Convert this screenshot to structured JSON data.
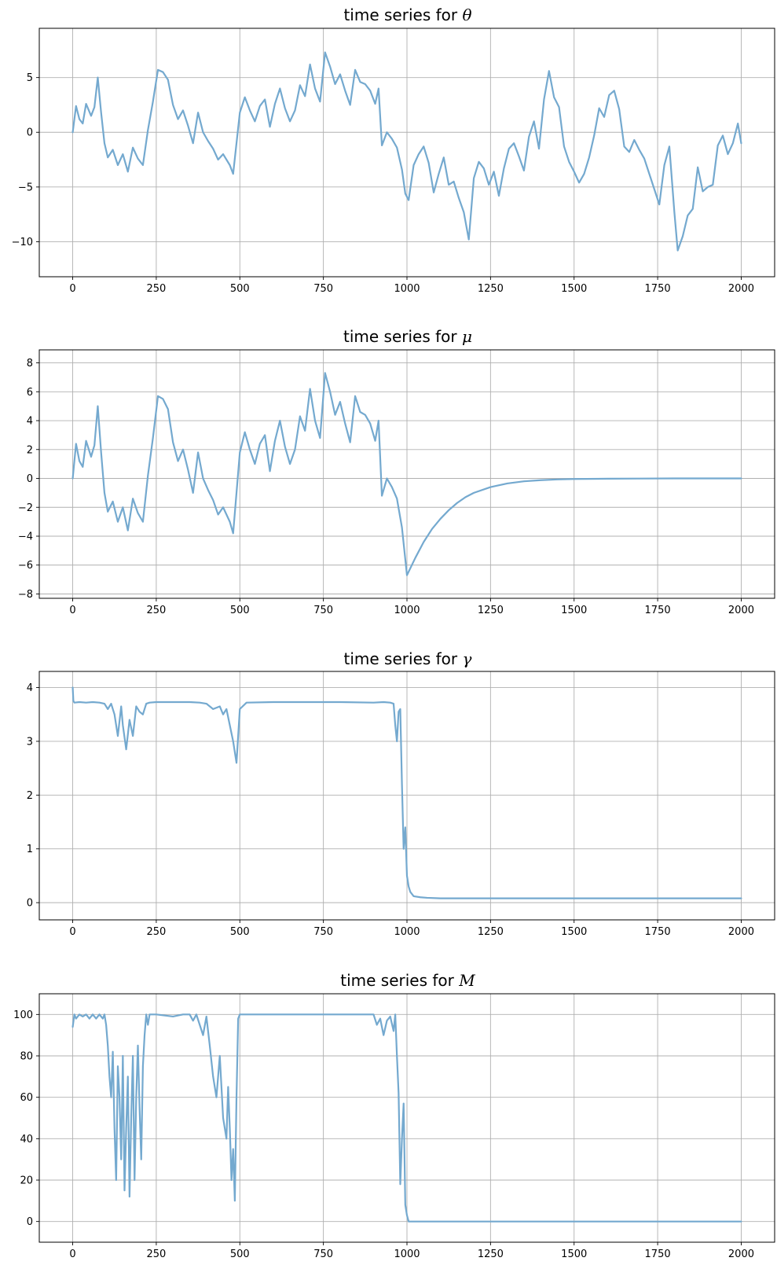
{
  "colors": {
    "series": "#74a9cf",
    "grid": "#b0b0b0",
    "axis": "#000000"
  },
  "chart_data": [
    {
      "type": "line",
      "title_prefix": "time series for ",
      "title_symbol": "θ",
      "grid": true,
      "xlim": [
        -100,
        2100
      ],
      "ylim": [
        -13.2,
        9.5
      ],
      "xticks": [
        0,
        250,
        500,
        750,
        1000,
        1250,
        1500,
        1750,
        2000
      ],
      "yticks": [
        5,
        0,
        -5,
        -10
      ],
      "ytick_labels": [
        "5",
        "0",
        "−5",
        "−10"
      ],
      "series": [
        {
          "x": [
            0,
            10,
            20,
            30,
            40,
            55,
            65,
            75,
            85,
            95,
            105,
            120,
            135,
            150,
            165,
            180,
            195,
            210,
            225,
            240,
            255,
            270,
            285,
            300,
            315,
            330,
            345,
            360,
            375,
            390,
            405,
            420,
            435,
            450,
            470,
            480,
            490,
            500,
            515,
            530,
            545,
            560,
            575,
            590,
            605,
            620,
            635,
            650,
            665,
            680,
            695,
            710,
            725,
            740,
            755,
            770,
            785,
            800,
            815,
            830,
            845,
            860,
            875,
            890,
            905,
            915,
            925,
            940,
            955,
            970,
            985,
            995,
            1005,
            1020,
            1035,
            1050,
            1065,
            1080,
            1095,
            1110,
            1125,
            1140,
            1155,
            1170,
            1185,
            1200,
            1215,
            1230,
            1245,
            1260,
            1275,
            1290,
            1305,
            1320,
            1335,
            1350,
            1365,
            1380,
            1395,
            1410,
            1425,
            1440,
            1455,
            1470,
            1485,
            1500,
            1515,
            1530,
            1545,
            1560,
            1575,
            1590,
            1605,
            1620,
            1635,
            1650,
            1665,
            1680,
            1695,
            1710,
            1725,
            1740,
            1755,
            1770,
            1785,
            1800,
            1810,
            1825,
            1840,
            1855,
            1870,
            1885,
            1900,
            1915,
            1930,
            1945,
            1960,
            1975,
            1990,
            2000
          ],
          "y": [
            0,
            2.4,
            1.2,
            0.8,
            2.6,
            1.5,
            2.3,
            5.0,
            1.8,
            -1.0,
            -2.3,
            -1.6,
            -3.0,
            -2.0,
            -3.6,
            -1.4,
            -2.4,
            -3.0,
            0.2,
            2.8,
            5.7,
            5.5,
            4.8,
            2.5,
            1.2,
            2.0,
            0.6,
            -1.0,
            1.8,
            0.0,
            -0.8,
            -1.5,
            -2.5,
            -2.0,
            -3.0,
            -3.8,
            -1.0,
            1.8,
            3.2,
            2.0,
            1.0,
            2.4,
            3.0,
            0.5,
            2.6,
            4.0,
            2.2,
            1.0,
            2.0,
            4.3,
            3.3,
            6.2,
            4.0,
            2.8,
            7.3,
            6.0,
            4.4,
            5.3,
            3.8,
            2.5,
            5.7,
            4.6,
            4.4,
            3.8,
            2.6,
            4.0,
            -1.2,
            0.0,
            -0.6,
            -1.4,
            -3.4,
            -5.6,
            -6.2,
            -3.0,
            -2.0,
            -1.3,
            -2.8,
            -5.5,
            -3.8,
            -2.3,
            -4.8,
            -4.5,
            -6.0,
            -7.3,
            -9.8,
            -4.2,
            -2.7,
            -3.3,
            -4.8,
            -3.6,
            -5.8,
            -3.3,
            -1.5,
            -1.0,
            -2.2,
            -3.5,
            -0.4,
            1.0,
            -1.5,
            3.0,
            5.6,
            3.2,
            2.3,
            -1.3,
            -2.7,
            -3.6,
            -4.6,
            -3.8,
            -2.3,
            -0.3,
            2.2,
            1.4,
            3.4,
            3.8,
            2.1,
            -1.3,
            -1.8,
            -0.7,
            -1.6,
            -2.4,
            -3.8,
            -5.2,
            -6.6,
            -3.0,
            -1.3,
            -7.3,
            -10.8,
            -9.5,
            -7.6,
            -7.0,
            -3.2,
            -5.4,
            -5.0,
            -4.8,
            -1.2,
            -0.3,
            -2.0,
            -1.0,
            0.8,
            -1.0
          ]
        }
      ]
    },
    {
      "type": "line",
      "title_prefix": "time series for ",
      "title_symbol": "μ",
      "grid": true,
      "xlim": [
        -100,
        2100
      ],
      "ylim": [
        -8.3,
        8.9
      ],
      "xticks": [
        0,
        250,
        500,
        750,
        1000,
        1250,
        1500,
        1750,
        2000
      ],
      "yticks": [
        8,
        6,
        4,
        2,
        0,
        -2,
        -4,
        -6,
        -8
      ],
      "ytick_labels": [
        "8",
        "6",
        "4",
        "2",
        "0",
        "−2",
        "−4",
        "−6",
        "−8"
      ],
      "series": [
        {
          "x": [
            0,
            10,
            20,
            30,
            40,
            55,
            65,
            75,
            85,
            95,
            105,
            120,
            135,
            150,
            165,
            180,
            195,
            210,
            225,
            240,
            255,
            270,
            285,
            300,
            315,
            330,
            345,
            360,
            375,
            390,
            405,
            420,
            435,
            450,
            470,
            480,
            490,
            500,
            515,
            530,
            545,
            560,
            575,
            590,
            605,
            620,
            635,
            650,
            665,
            680,
            695,
            710,
            725,
            740,
            755,
            770,
            785,
            800,
            815,
            830,
            845,
            860,
            875,
            890,
            905,
            915,
            925,
            940,
            955,
            970,
            985,
            995,
            1000,
            1025,
            1050,
            1075,
            1100,
            1125,
            1150,
            1175,
            1200,
            1250,
            1300,
            1350,
            1400,
            1450,
            1500,
            1600,
            1700,
            1800,
            1900,
            2000
          ],
          "y": [
            0,
            2.4,
            1.2,
            0.8,
            2.6,
            1.5,
            2.3,
            5.0,
            1.8,
            -1.0,
            -2.3,
            -1.6,
            -3.0,
            -2.0,
            -3.6,
            -1.4,
            -2.4,
            -3.0,
            0.2,
            2.8,
            5.7,
            5.5,
            4.8,
            2.5,
            1.2,
            2.0,
            0.6,
            -1.0,
            1.8,
            0.0,
            -0.8,
            -1.5,
            -2.5,
            -2.0,
            -3.0,
            -3.8,
            -1.0,
            1.8,
            3.2,
            2.0,
            1.0,
            2.4,
            3.0,
            0.5,
            2.6,
            4.0,
            2.2,
            1.0,
            2.0,
            4.3,
            3.3,
            6.2,
            4.0,
            2.8,
            7.3,
            6.0,
            4.4,
            5.3,
            3.8,
            2.5,
            5.7,
            4.6,
            4.4,
            3.8,
            2.6,
            4.0,
            -1.2,
            0.0,
            -0.6,
            -1.4,
            -3.4,
            -5.6,
            -6.7,
            -5.5,
            -4.4,
            -3.5,
            -2.8,
            -2.2,
            -1.7,
            -1.3,
            -1.0,
            -0.6,
            -0.35,
            -0.2,
            -0.12,
            -0.07,
            -0.04,
            -0.02,
            -0.01,
            0,
            0,
            0
          ]
        }
      ]
    },
    {
      "type": "line",
      "title_prefix": "time series for ",
      "title_symbol": "γ",
      "grid": true,
      "xlim": [
        -100,
        2100
      ],
      "ylim": [
        -0.32,
        4.3
      ],
      "xticks": [
        0,
        250,
        500,
        750,
        1000,
        1250,
        1500,
        1750,
        2000
      ],
      "yticks": [
        4,
        3,
        2,
        1,
        0
      ],
      "ytick_labels": [
        "4",
        "3",
        "2",
        "1",
        "0"
      ],
      "series": [
        {
          "x": [
            0,
            2,
            5,
            20,
            40,
            60,
            80,
            95,
            105,
            115,
            125,
            135,
            145,
            150,
            160,
            170,
            180,
            190,
            200,
            210,
            220,
            230,
            250,
            300,
            350,
            380,
            400,
            420,
            440,
            450,
            460,
            470,
            480,
            490,
            500,
            520,
            600,
            700,
            800,
            900,
            930,
            950,
            960,
            965,
            970,
            975,
            980,
            985,
            990,
            995,
            1000,
            1005,
            1010,
            1020,
            1040,
            1060,
            1100,
            1200,
            1500,
            2000
          ],
          "y": [
            4.0,
            3.75,
            3.72,
            3.73,
            3.72,
            3.73,
            3.72,
            3.7,
            3.6,
            3.7,
            3.5,
            3.1,
            3.65,
            3.3,
            2.85,
            3.4,
            3.1,
            3.65,
            3.55,
            3.5,
            3.7,
            3.72,
            3.73,
            3.73,
            3.73,
            3.72,
            3.7,
            3.6,
            3.65,
            3.5,
            3.6,
            3.3,
            3.0,
            2.6,
            3.6,
            3.72,
            3.73,
            3.73,
            3.73,
            3.72,
            3.73,
            3.72,
            3.7,
            3.3,
            3.0,
            3.55,
            3.6,
            2.2,
            1.0,
            1.4,
            0.5,
            0.3,
            0.2,
            0.12,
            0.1,
            0.09,
            0.08,
            0.08,
            0.08,
            0.08
          ]
        }
      ]
    },
    {
      "type": "line",
      "title_prefix": "time series for ",
      "title_symbol": "M",
      "grid": true,
      "xlim": [
        -100,
        2100
      ],
      "ylim": [
        -10,
        110
      ],
      "xticks": [
        0,
        250,
        500,
        750,
        1000,
        1250,
        1500,
        1750,
        2000
      ],
      "yticks": [
        100,
        80,
        60,
        40,
        20,
        0
      ],
      "ytick_labels": [
        "100",
        "80",
        "60",
        "40",
        "20",
        "0"
      ],
      "series": [
        {
          "x": [
            0,
            5,
            10,
            20,
            30,
            40,
            50,
            60,
            70,
            80,
            90,
            95,
            100,
            105,
            110,
            115,
            120,
            125,
            130,
            135,
            140,
            145,
            150,
            155,
            160,
            165,
            170,
            175,
            180,
            185,
            190,
            195,
            200,
            205,
            210,
            215,
            220,
            225,
            230,
            240,
            250,
            300,
            330,
            350,
            360,
            370,
            380,
            390,
            400,
            410,
            420,
            430,
            440,
            450,
            460,
            465,
            470,
            475,
            480,
            485,
            490,
            495,
            500,
            550,
            600,
            700,
            800,
            900,
            910,
            920,
            930,
            940,
            950,
            960,
            965,
            970,
            975,
            980,
            985,
            990,
            995,
            1000,
            1005,
            1010,
            1050,
            1500,
            2000
          ],
          "y": [
            94,
            100,
            98,
            100,
            99,
            100,
            98,
            100,
            98,
            100,
            98,
            100,
            95,
            85,
            70,
            60,
            82,
            45,
            20,
            75,
            60,
            30,
            80,
            15,
            45,
            70,
            12,
            50,
            80,
            20,
            60,
            85,
            55,
            30,
            75,
            90,
            100,
            95,
            100,
            100,
            100,
            99,
            100,
            100,
            97,
            100,
            95,
            90,
            99,
            85,
            70,
            60,
            80,
            50,
            40,
            65,
            45,
            20,
            35,
            10,
            60,
            98,
            100,
            100,
            100,
            100,
            100,
            100,
            95,
            98,
            90,
            97,
            99,
            92,
            100,
            80,
            62,
            18,
            40,
            57,
            8,
            3,
            0,
            0,
            0,
            0,
            0
          ]
        }
      ]
    }
  ]
}
